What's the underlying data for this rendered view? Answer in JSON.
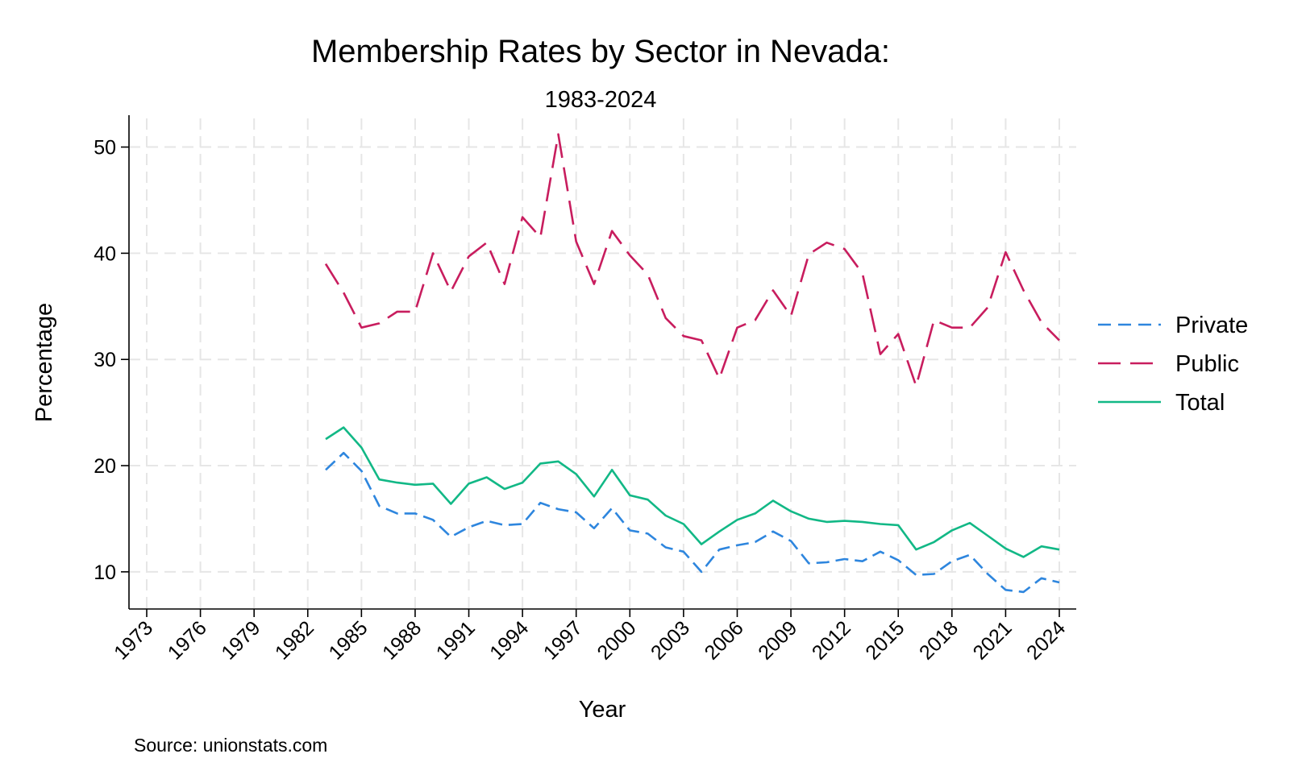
{
  "chart_data": {
    "type": "line",
    "title": "Membership Rates by Sector in Nevada:",
    "subtitle": "1983-2024",
    "xlabel": "Year",
    "ylabel": "Percentage",
    "source": "Source: unionstats.com",
    "xlim": [
      1973,
      2024
    ],
    "ylim": [
      6.5,
      53
    ],
    "x_ticks": [
      1973,
      1976,
      1979,
      1982,
      1985,
      1988,
      1991,
      1994,
      1997,
      2000,
      2003,
      2006,
      2009,
      2012,
      2015,
      2018,
      2021,
      2024
    ],
    "y_ticks": [
      10,
      20,
      30,
      40,
      50
    ],
    "grid": true,
    "legend_position": "right",
    "x": [
      1983,
      1984,
      1985,
      1986,
      1987,
      1988,
      1989,
      1990,
      1991,
      1992,
      1993,
      1994,
      1995,
      1996,
      1997,
      1998,
      1999,
      2000,
      2001,
      2002,
      2003,
      2004,
      2005,
      2006,
      2007,
      2008,
      2009,
      2010,
      2011,
      2012,
      2013,
      2014,
      2015,
      2016,
      2017,
      2018,
      2019,
      2020,
      2021,
      2022,
      2023,
      2024
    ],
    "series": [
      {
        "name": "Private",
        "color": "#2e86de",
        "dash": "short",
        "values": [
          19.6,
          21.2,
          19.5,
          16.2,
          15.5,
          15.5,
          14.9,
          13.3,
          14.2,
          14.8,
          14.4,
          14.5,
          16.5,
          15.9,
          15.6,
          14.1,
          16.0,
          13.9,
          13.6,
          12.3,
          11.9,
          10.0,
          12.1,
          12.5,
          12.8,
          13.8,
          12.9,
          10.8,
          10.9,
          11.2,
          11.0,
          11.9,
          11.1,
          9.7,
          9.8,
          11.0,
          11.6,
          9.8,
          8.3,
          8.1,
          9.4,
          9.0
        ]
      },
      {
        "name": "Public",
        "color": "#c81d5e",
        "dash": "long",
        "values": [
          39.0,
          36.3,
          33.0,
          33.4,
          34.5,
          34.5,
          40.0,
          36.4,
          39.7,
          41.0,
          37.1,
          43.4,
          41.5,
          51.2,
          41.1,
          37.1,
          42.1,
          39.8,
          38.0,
          33.9,
          32.2,
          31.8,
          28.2,
          33.0,
          33.7,
          36.5,
          34.1,
          39.9,
          41.0,
          40.4,
          38.1,
          30.5,
          32.4,
          27.5,
          33.7,
          33.0,
          33.0,
          34.9,
          40.1,
          36.5,
          33.5,
          31.8
        ]
      },
      {
        "name": "Total",
        "color": "#12b886",
        "dash": "solid",
        "values": [
          22.5,
          23.6,
          21.7,
          18.7,
          18.4,
          18.2,
          18.3,
          16.4,
          18.3,
          18.9,
          17.8,
          18.4,
          20.2,
          20.4,
          19.2,
          17.1,
          19.6,
          17.2,
          16.8,
          15.3,
          14.5,
          12.6,
          13.8,
          14.9,
          15.5,
          16.7,
          15.7,
          15.0,
          14.7,
          14.8,
          14.7,
          14.5,
          14.4,
          12.1,
          12.8,
          13.9,
          14.6,
          13.4,
          12.2,
          11.4,
          12.4,
          12.1
        ]
      }
    ]
  }
}
